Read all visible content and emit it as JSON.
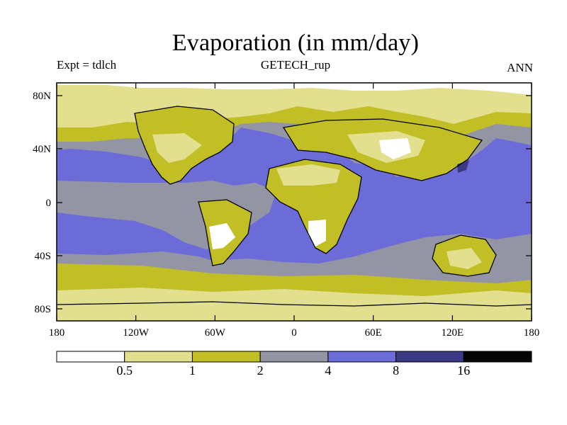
{
  "header": {
    "title": "Evaporation (in mm/day)",
    "left": "Expt = tdlch",
    "center": "GETECH_rup",
    "right": "ANN"
  },
  "map": {
    "lat_ticks": [
      "80N",
      "40N",
      "0",
      "40S",
      "80S"
    ],
    "lon_ticks": [
      "180",
      "120W",
      "60W",
      "0",
      "60E",
      "120E",
      "180"
    ]
  },
  "colorbar": {
    "labels": [
      "0.5",
      "1",
      "2",
      "4",
      "8",
      "16"
    ],
    "colors": [
      "#ffffff",
      "#e2e08f",
      "#c2be25",
      "#9395a5",
      "#6c6cd9",
      "#3c3a84",
      "#050505"
    ]
  },
  "colors": {
    "lt0_5": "#ffffff",
    "0_5to1": "#e2e08f",
    "1to2": "#c2be25",
    "2to4": "#9395a5",
    "4to8": "#6c6cd9",
    "8to16": "#3c3a84",
    "gt16": "#050505"
  }
}
